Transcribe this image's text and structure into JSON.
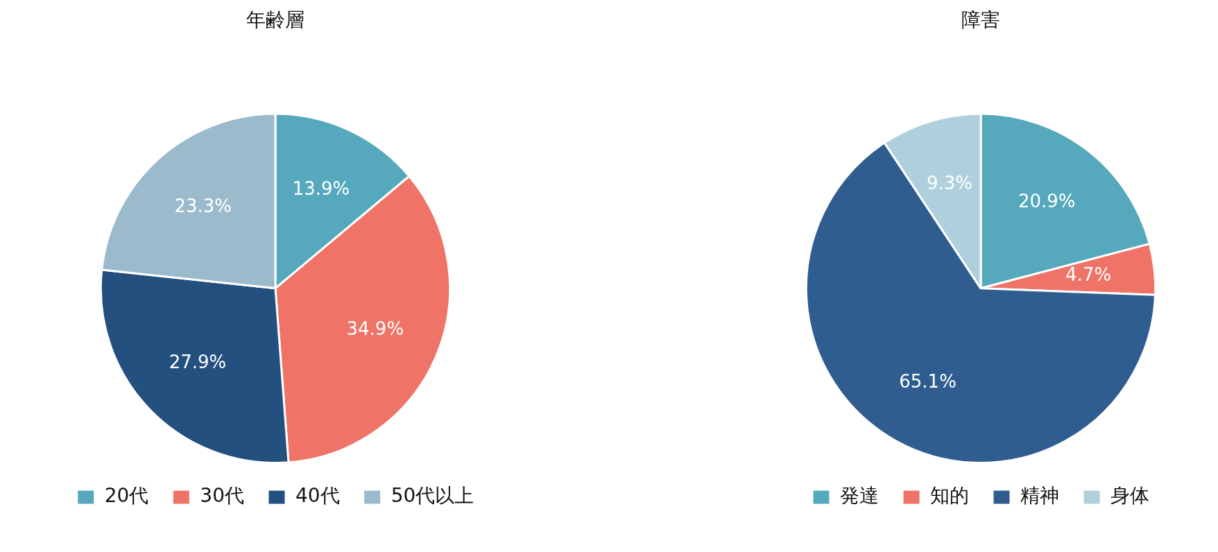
{
  "chart_data": [
    {
      "type": "pie",
      "title": "年齢層",
      "categories": [
        "20代",
        "30代",
        "40代",
        "50代以上"
      ],
      "values": [
        13.9,
        34.9,
        27.9,
        23.3
      ],
      "colors": [
        "#56a9bc",
        "#ef7467",
        "#24507f",
        "#9bbbcc"
      ],
      "value_labels": [
        "13.9%",
        "34.9%",
        "27.9%",
        "23.3%"
      ],
      "legend": "bottom"
    },
    {
      "type": "pie",
      "title": "障害",
      "categories": [
        "発達",
        "知的",
        "精神",
        "身体"
      ],
      "values": [
        20.9,
        4.7,
        65.1,
        9.3
      ],
      "colors": [
        "#56a9bc",
        "#ef7467",
        "#2f5d8f",
        "#afcfdc"
      ],
      "value_labels": [
        "20.9%",
        "4.7%",
        "65.1%",
        "9.3%"
      ],
      "legend": "bottom"
    }
  ]
}
